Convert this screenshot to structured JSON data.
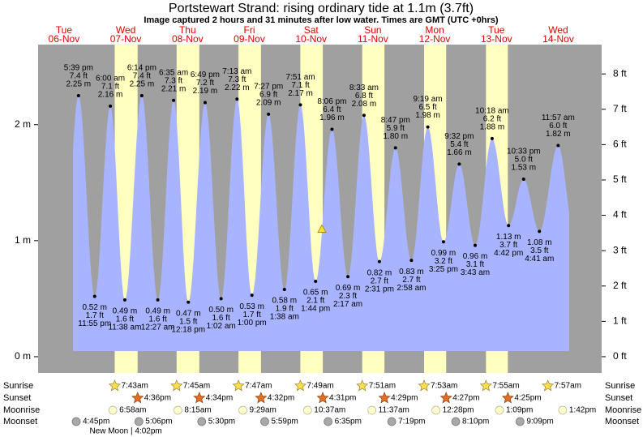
{
  "chart_data": {
    "type": "tide",
    "title": "Portstewart Strand: rising  ordinary tide at 1.1m (3.7ft)",
    "subtitle": "Image captured 2 hours and 31 minutes after low water. Times are GMT (UTC +0hrs)",
    "current_height_m": 1.1,
    "ylim": [
      -0.14,
      2.69
    ],
    "yticks": [
      {
        "value": 0,
        "label": "0 m"
      },
      {
        "value": 1,
        "label": "1 m"
      },
      {
        "value": 2,
        "label": "2 m"
      }
    ],
    "y2lim": [
      -0.46,
      8.83
    ],
    "y2ticks": [
      {
        "value": 0,
        "label": "0 ft"
      },
      {
        "value": 1,
        "label": "1 ft"
      },
      {
        "value": 2,
        "label": "2 ft"
      },
      {
        "value": 3,
        "label": "3 ft"
      },
      {
        "value": 4,
        "label": "4 ft"
      },
      {
        "value": 5,
        "label": "5 ft"
      },
      {
        "value": 6,
        "label": "6 ft"
      },
      {
        "value": 7,
        "label": "7 ft"
      },
      {
        "value": 8,
        "label": "8 ft"
      }
    ],
    "rows": {
      "sunrise": "Sunrise",
      "sunset": "Sunset",
      "moonrise": "Moonrise",
      "moonset": "Moonset"
    },
    "days": [
      {
        "weekday": "Tue",
        "date": "06-Nov",
        "moonset": "4:45pm",
        "tides": [
          {
            "time": "5:39 pm",
            "m": 2.25,
            "m_label": "2.25 m",
            "ft_label": "7.4 ft"
          },
          {
            "time": "11:55 pm",
            "m": 0.52,
            "m_label": "0.52 m",
            "ft_label": "1.7 ft"
          }
        ]
      },
      {
        "weekday": "Wed",
        "date": "07-Nov",
        "sunrise": "7:43am",
        "sunset": "4:36pm",
        "moonrise": "6:58am",
        "moonset": "5:06pm",
        "moon_phase": "New Moon | 4:02pm",
        "tides": [
          {
            "time": "6:00 am",
            "m": 2.16,
            "m_label": "2.16 m",
            "ft_label": "7.1 ft"
          },
          {
            "time": "11:38 am",
            "m": 0.49,
            "m_label": "0.49 m",
            "ft_label": "1.6 ft"
          },
          {
            "time": "6:14 pm",
            "m": 2.25,
            "m_label": "2.25 m",
            "ft_label": "7.4 ft"
          }
        ]
      },
      {
        "weekday": "Thu",
        "date": "08-Nov",
        "sunrise": "7:45am",
        "sunset": "4:34pm",
        "moonrise": "8:15am",
        "moonset": "5:30pm",
        "tides": [
          {
            "time": "12:27 am",
            "m": 0.49,
            "m_label": "0.49 m",
            "ft_label": "1.6 ft"
          },
          {
            "time": "6:35 am",
            "m": 2.21,
            "m_label": "2.21 m",
            "ft_label": "7.3 ft"
          },
          {
            "time": "12:18 pm",
            "m": 0.47,
            "m_label": "0.47 m",
            "ft_label": "1.5 ft"
          },
          {
            "time": "6:49 pm",
            "m": 2.19,
            "m_label": "2.19 m",
            "ft_label": "7.2 ft"
          }
        ]
      },
      {
        "weekday": "Fri",
        "date": "09-Nov",
        "sunrise": "7:47am",
        "sunset": "4:32pm",
        "moonrise": "9:29am",
        "moonset": "5:59pm",
        "tides": [
          {
            "time": "1:02 am",
            "m": 0.5,
            "m_label": "0.50 m",
            "ft_label": "1.6 ft"
          },
          {
            "time": "7:13 am",
            "m": 2.22,
            "m_label": "2.22 m",
            "ft_label": "7.3 ft"
          },
          {
            "time": "1:00 pm",
            "m": 0.53,
            "m_label": "0.53 m",
            "ft_label": "1.7 ft"
          },
          {
            "time": "7:27 pm",
            "m": 2.09,
            "m_label": "2.09 m",
            "ft_label": "6.9 ft"
          }
        ]
      },
      {
        "weekday": "Sat",
        "date": "10-Nov",
        "sunrise": "7:49am",
        "sunset": "4:31pm",
        "moonrise": "10:37am",
        "moonset": "6:35pm",
        "tides": [
          {
            "time": "1:38 am",
            "m": 0.58,
            "m_label": "0.58 m",
            "ft_label": "1.9 ft"
          },
          {
            "time": "7:51 am",
            "m": 2.17,
            "m_label": "2.17 m",
            "ft_label": "7.1 ft"
          },
          {
            "time": "1:44 pm",
            "m": 0.65,
            "m_label": "0.65 m",
            "ft_label": "2.1 ft"
          },
          {
            "time": "8:06 pm",
            "m": 1.96,
            "m_label": "1.96 m",
            "ft_label": "6.4 ft"
          }
        ]
      },
      {
        "weekday": "Sun",
        "date": "11-Nov",
        "sunrise": "7:51am",
        "sunset": "4:29pm",
        "moonrise": "11:37am",
        "moonset": "7:19pm",
        "tides": [
          {
            "time": "2:17 am",
            "m": 0.69,
            "m_label": "0.69 m",
            "ft_label": "2.3 ft"
          },
          {
            "time": "8:33 am",
            "m": 2.08,
            "m_label": "2.08 m",
            "ft_label": "6.8 ft"
          },
          {
            "time": "2:31 pm",
            "m": 0.82,
            "m_label": "0.82 m",
            "ft_label": "2.7 ft"
          },
          {
            "time": "8:47 pm",
            "m": 1.8,
            "m_label": "1.80 m",
            "ft_label": "5.9 ft"
          }
        ]
      },
      {
        "weekday": "Mon",
        "date": "12-Nov",
        "sunrise": "7:53am",
        "sunset": "4:27pm",
        "moonrise": "12:28pm",
        "moonset": "8:10pm",
        "tides": [
          {
            "time": "2:58 am",
            "m": 0.83,
            "m_label": "0.83 m",
            "ft_label": "2.7 ft"
          },
          {
            "time": "9:19 am",
            "m": 1.98,
            "m_label": "1.98 m",
            "ft_label": "6.5 ft"
          },
          {
            "time": "3:25 pm",
            "m": 0.99,
            "m_label": "0.99 m",
            "ft_label": "3.2 ft"
          },
          {
            "time": "9:32 pm",
            "m": 1.66,
            "m_label": "1.66 m",
            "ft_label": "5.4 ft"
          }
        ]
      },
      {
        "weekday": "Tue",
        "date": "13-Nov",
        "sunrise": "7:55am",
        "sunset": "4:25pm",
        "moonrise": "1:09pm",
        "moonset": "9:09pm",
        "tides": [
          {
            "time": "3:43 am",
            "m": 0.96,
            "m_label": "0.96 m",
            "ft_label": "3.1 ft"
          },
          {
            "time": "10:18 am",
            "m": 1.88,
            "m_label": "1.88 m",
            "ft_label": "6.2 ft"
          },
          {
            "time": "4:42 pm",
            "m": 1.13,
            "m_label": "1.13 m",
            "ft_label": "3.7 ft"
          },
          {
            "time": "10:33 pm",
            "m": 1.53,
            "m_label": "1.53 m",
            "ft_label": "5.0 ft"
          }
        ]
      },
      {
        "weekday": "Wed",
        "date": "14-Nov",
        "sunrise": "7:57am",
        "moonrise": "1:42pm",
        "tides": [
          {
            "time": "4:41 am",
            "m": 1.08,
            "m_label": "1.08 m",
            "ft_label": "3.5 ft"
          },
          {
            "time": "11:57 am",
            "m": 1.82,
            "m_label": "1.82 m",
            "ft_label": "6.0 ft"
          }
        ]
      }
    ]
  }
}
